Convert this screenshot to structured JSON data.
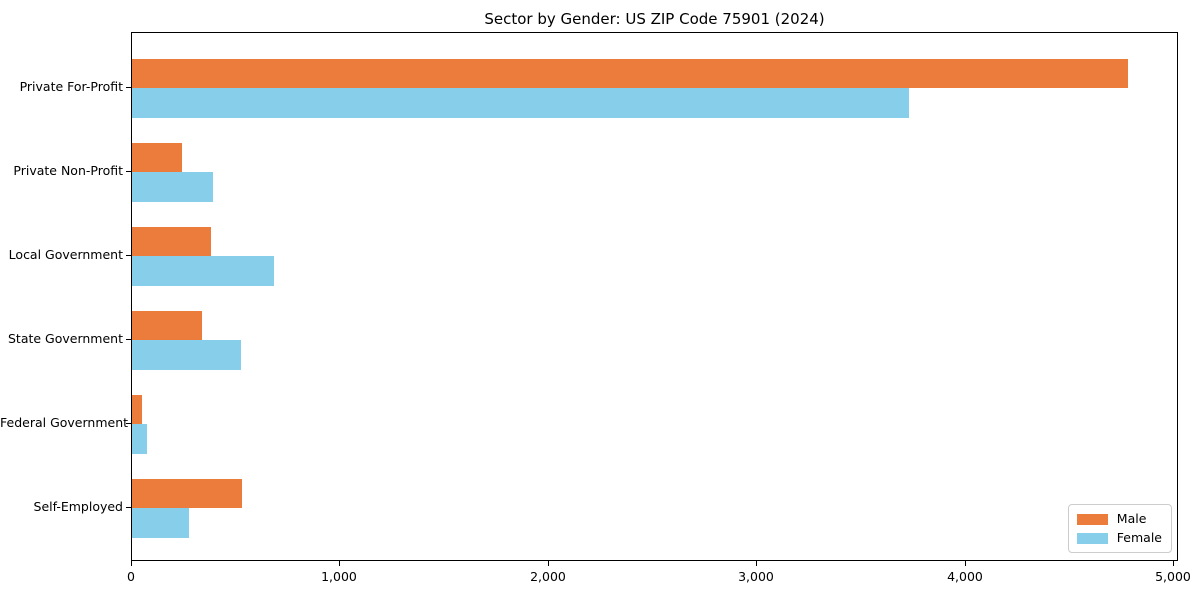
{
  "figure": {
    "title": "Sector by Gender: US ZIP Code 75901 (2024)"
  },
  "chart_data": {
    "type": "bar",
    "orientation": "horizontal",
    "title": "Sector by Gender: US ZIP Code 75901 (2024)",
    "categories": [
      "Private For-Profit",
      "Private Non-Profit",
      "Local Government",
      "State Government",
      "Federal Government",
      "Self-Employed"
    ],
    "series": [
      {
        "name": "Male",
        "color": "#EB7C3C",
        "values": [
          4780,
          240,
          380,
          335,
          47,
          530
        ]
      },
      {
        "name": "Female",
        "color": "#87CEEB",
        "values": [
          3730,
          390,
          680,
          525,
          70,
          275
        ]
      }
    ],
    "xlabel": "",
    "ylabel": "",
    "xlim": [
      0,
      5000
    ],
    "x_ticks": [
      0,
      1000,
      2000,
      3000,
      4000,
      5000
    ],
    "x_tick_labels": [
      "0",
      "1,000",
      "2,000",
      "3,000",
      "4,000",
      "5,000"
    ],
    "grid": false,
    "legend": {
      "position": "lower right",
      "entries": [
        "Male",
        "Female"
      ]
    }
  }
}
